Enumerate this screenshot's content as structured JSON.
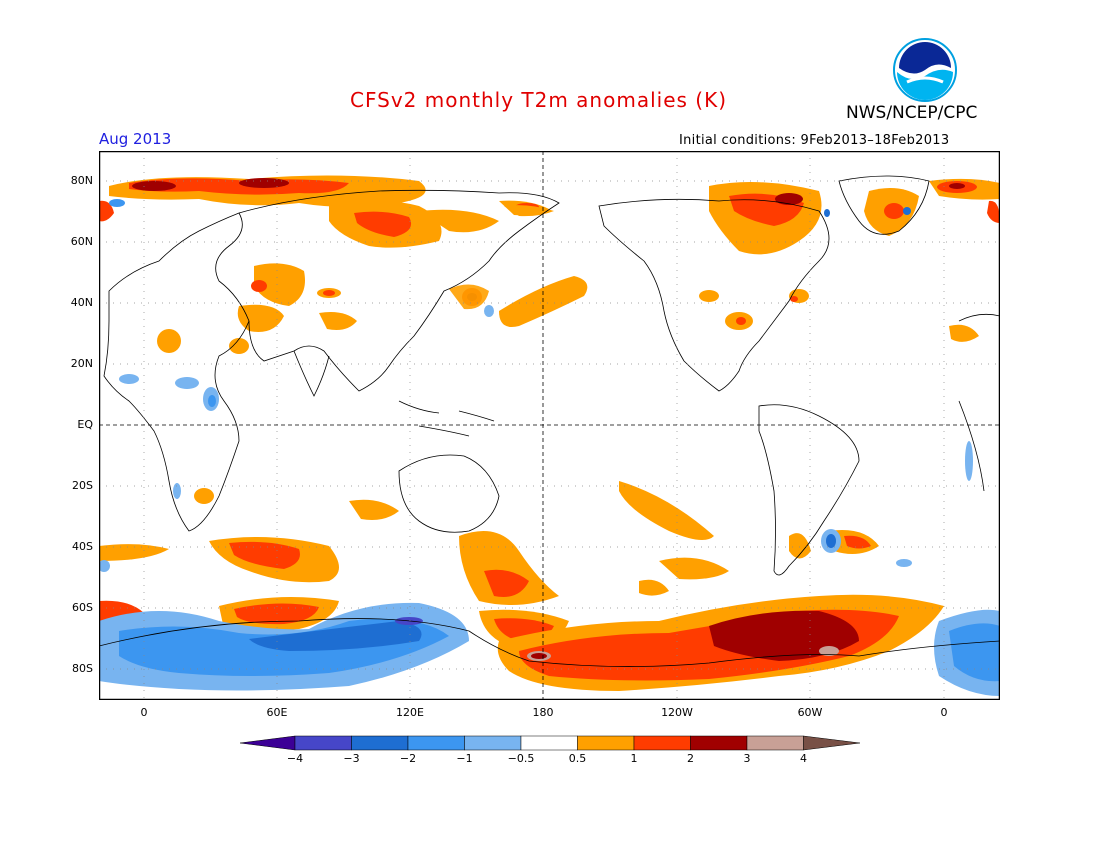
{
  "header": {
    "title": "CFSv2 monthly T2m anomalies (K)",
    "agency": "NWS/NCEP/CPC",
    "month": "Aug 2013",
    "initial_conditions": "Initial conditions: 9Feb2013–18Feb2013",
    "logo_text": "NOAA"
  },
  "axes": {
    "lat_labels": [
      "80N",
      "60N",
      "40N",
      "20N",
      "EQ",
      "20S",
      "40S",
      "60S",
      "80S"
    ],
    "lon_labels": [
      "0",
      "60E",
      "120E",
      "180",
      "120W",
      "60W",
      "0"
    ]
  },
  "colorbar": {
    "labels": [
      "−4",
      "−3",
      "−2",
      "−1",
      "−0.5",
      "0.5",
      "1",
      "2",
      "3",
      "4"
    ],
    "colors": [
      "#3c0096",
      "#4646c8",
      "#1e6ed2",
      "#3c96f0",
      "#78b4f0",
      "#ffffff",
      "#ffa000",
      "#ff3c00",
      "#a00000",
      "#c8a096",
      "#785046"
    ]
  },
  "map": {
    "ocean": "#ffffff",
    "coast": "#000000",
    "grid": "#888888"
  }
}
